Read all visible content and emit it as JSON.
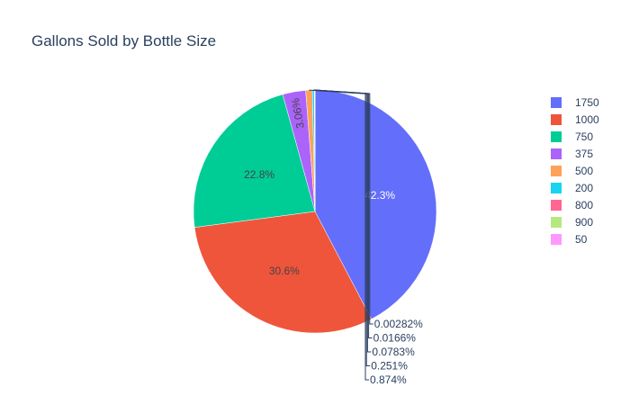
{
  "chart_data": {
    "type": "pie",
    "title": "Gallons Sold by Bottle Size",
    "labels": [
      "1750",
      "1000",
      "750",
      "375",
      "500",
      "200",
      "800",
      "900",
      "50"
    ],
    "values": [
      42.3,
      30.6,
      22.8,
      3.06,
      0.874,
      0.251,
      0.0783,
      0.0166,
      0.00282
    ],
    "value_labels": [
      "42.3%",
      "30.6%",
      "22.8%",
      "3.06%",
      "0.874%",
      "0.251%",
      "0.0783%",
      "0.0166%",
      "0.00282%"
    ],
    "colors": [
      "#636efa",
      "#EF553B",
      "#00cc96",
      "#ab63fa",
      "#FFA15A",
      "#19d3f3",
      "#FF6692",
      "#B6E880",
      "#FF97FF"
    ],
    "legend_position": "right",
    "direction": "clockwise",
    "start": "top"
  }
}
